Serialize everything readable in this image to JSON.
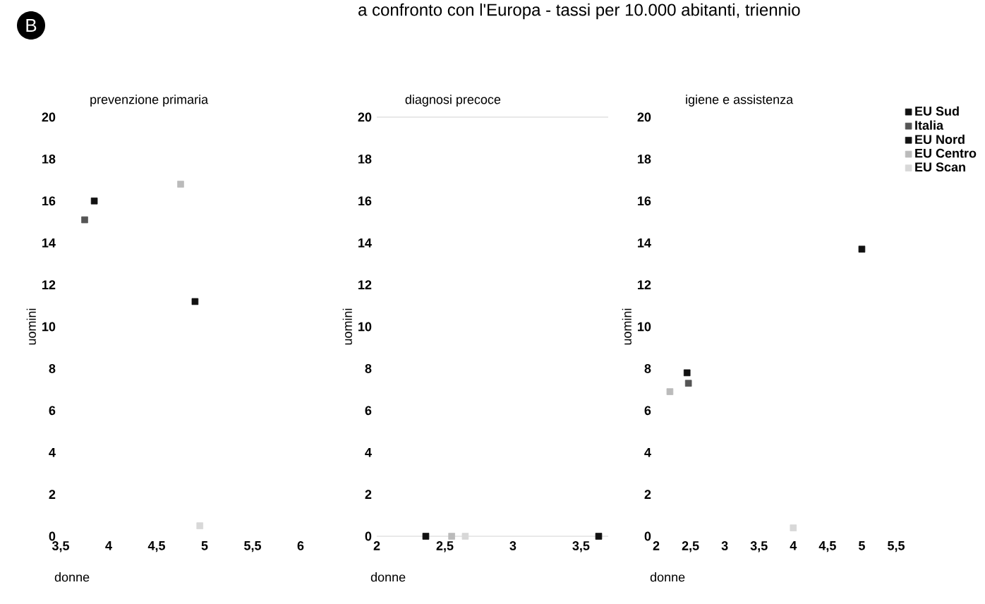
{
  "chart_data": [
    {
      "type": "scatter",
      "title": "prevenzione primaria",
      "xlabel": "donne",
      "ylabel": "uomini",
      "marker": "square",
      "annotations": [
        "B",
        "a confronto con l'Europa - tassi per 10.000 abitanti, triennio"
      ],
      "xlim": [
        3.5,
        6
      ],
      "xticks": [
        {
          "value": 3.5,
          "label": "3,5"
        },
        4,
        {
          "value": 4.5,
          "label": "4,5"
        },
        5,
        {
          "value": 5.5,
          "label": "5,5"
        },
        6
      ],
      "ylim": [
        0,
        20
      ],
      "yticks": [
        0,
        2,
        4,
        6,
        8,
        10,
        12,
        14,
        16,
        18,
        20
      ],
      "series": [
        {
          "x": [
            3.85,
            3.75,
            4.9,
            4.75,
            4.95
          ],
          "values": [
            16,
            15.1,
            11.2,
            16.8,
            0.5
          ],
          "colors": [
            "#111111",
            "#555555",
            "#111111",
            "#bbbbbb",
            "#d8d8d8"
          ]
        }
      ]
    },
    {
      "type": "scatter",
      "title": "diagnosi precoce",
      "xlabel": "donne",
      "ylabel": "uomini",
      "marker": "square",
      "xlim": [
        2,
        3.7
      ],
      "xticks": [
        2,
        {
          "value": 2.5,
          "label": "2,5"
        },
        3,
        {
          "value": 3.5,
          "label": "3,5"
        }
      ],
      "ylim": [
        0,
        20
      ],
      "yticks": [
        0,
        2,
        4,
        6,
        8,
        10,
        12,
        14,
        16,
        18,
        20
      ],
      "series": [
        {
          "x": [
            2.36,
            2.55,
            2.65,
            3.63
          ],
          "values": [
            0,
            0,
            0,
            0
          ],
          "colors": [
            "#111111",
            "#bbbbbb",
            "#d8d8d8",
            "#111111"
          ]
        }
      ]
    },
    {
      "type": "scatter",
      "title": "igiene e assistenza",
      "xlabel": "donne",
      "ylabel": "uomini",
      "marker": "square",
      "legend": "right",
      "xlim": [
        2,
        5.5
      ],
      "xticks": [
        2,
        {
          "value": 2.5,
          "label": "2,5"
        },
        3,
        {
          "value": 3.5,
          "label": "3,5"
        },
        4,
        {
          "value": 4.5,
          "label": "4,5"
        },
        5,
        {
          "value": 5.5,
          "label": "5,5"
        }
      ],
      "ylim": [
        0,
        20
      ],
      "yticks": [
        0,
        2,
        4,
        6,
        8,
        10,
        12,
        14,
        16,
        18,
        20
      ],
      "series": [
        {
          "name": "EU Sud",
          "color": "#111111",
          "x": [
            2.45
          ],
          "values": [
            7.8
          ]
        },
        {
          "name": "Italia",
          "color": "#555555",
          "x": [
            2.47
          ],
          "values": [
            7.3
          ]
        },
        {
          "name": "EU Nord",
          "color": "#111111",
          "x": [
            5.0
          ],
          "values": [
            13.7
          ]
        },
        {
          "name": "EU Centro",
          "color": "#bbbbbb",
          "x": [
            2.2
          ],
          "values": [
            6.9
          ]
        },
        {
          "name": "EU Scan",
          "color": "#d8d8d8",
          "x": [
            4.0
          ],
          "values": [
            0.4
          ]
        }
      ]
    }
  ]
}
